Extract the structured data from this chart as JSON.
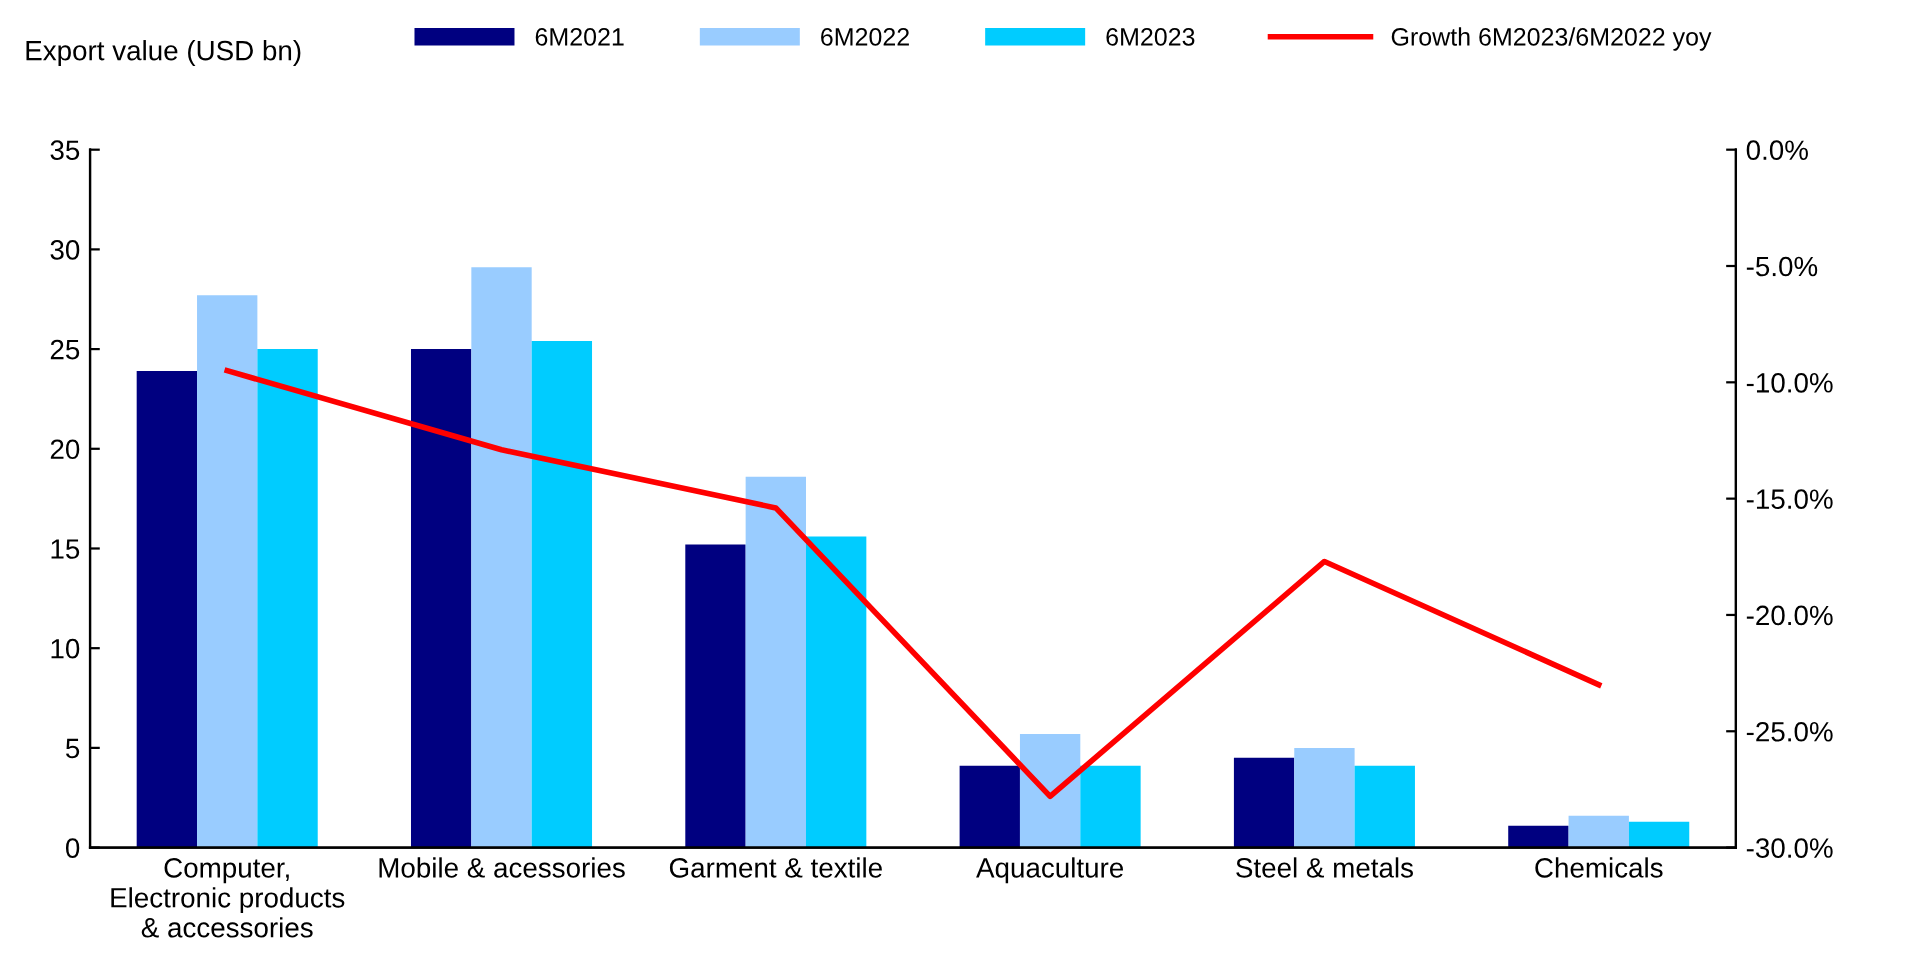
{
  "chart_data": {
    "type": "bar",
    "ylabel": "Export value (USD bn)",
    "categories": [
      "Computer,\nElectronic products\n& accessories",
      "Mobile & acessories",
      "Garment & textile",
      "Aquaculture",
      "Steel & metals",
      "Chemicals"
    ],
    "series": [
      {
        "name": "6M2021",
        "color": "#000080",
        "values": [
          23.9,
          25.0,
          15.2,
          4.1,
          4.5,
          1.1
        ]
      },
      {
        "name": "6M2022",
        "color": "#99ccff",
        "values": [
          27.7,
          29.1,
          18.6,
          5.7,
          5.0,
          1.6
        ]
      },
      {
        "name": "6M2023",
        "color": "#00ccff",
        "values": [
          25.0,
          25.4,
          15.6,
          4.1,
          4.1,
          1.3
        ]
      },
      {
        "name": "Growth 6M2023/6M2022 yoy",
        "type": "line",
        "axis": "y2",
        "color": "#ff0000",
        "values": [
          -9.5,
          -12.9,
          -15.4,
          -27.8,
          -17.7,
          -23.0
        ]
      }
    ],
    "ylim": [
      0,
      35
    ],
    "yticks": [
      0,
      5,
      10,
      15,
      20,
      25,
      30,
      35
    ],
    "y2lim": [
      -30,
      0
    ],
    "y2ticks": [
      {
        "value": 0,
        "label": "0.0%"
      },
      {
        "value": -5,
        "label": "-5.0%"
      },
      {
        "value": -10,
        "label": "-10.0%"
      },
      {
        "value": -15,
        "label": "-15.0%"
      },
      {
        "value": -20,
        "label": "-20.0%"
      },
      {
        "value": -25,
        "label": "-25.0%"
      },
      {
        "value": -30,
        "label": "-30.0%"
      }
    ],
    "grid": false,
    "legend": "top",
    "marker": "none",
    "line_style": "solid"
  }
}
